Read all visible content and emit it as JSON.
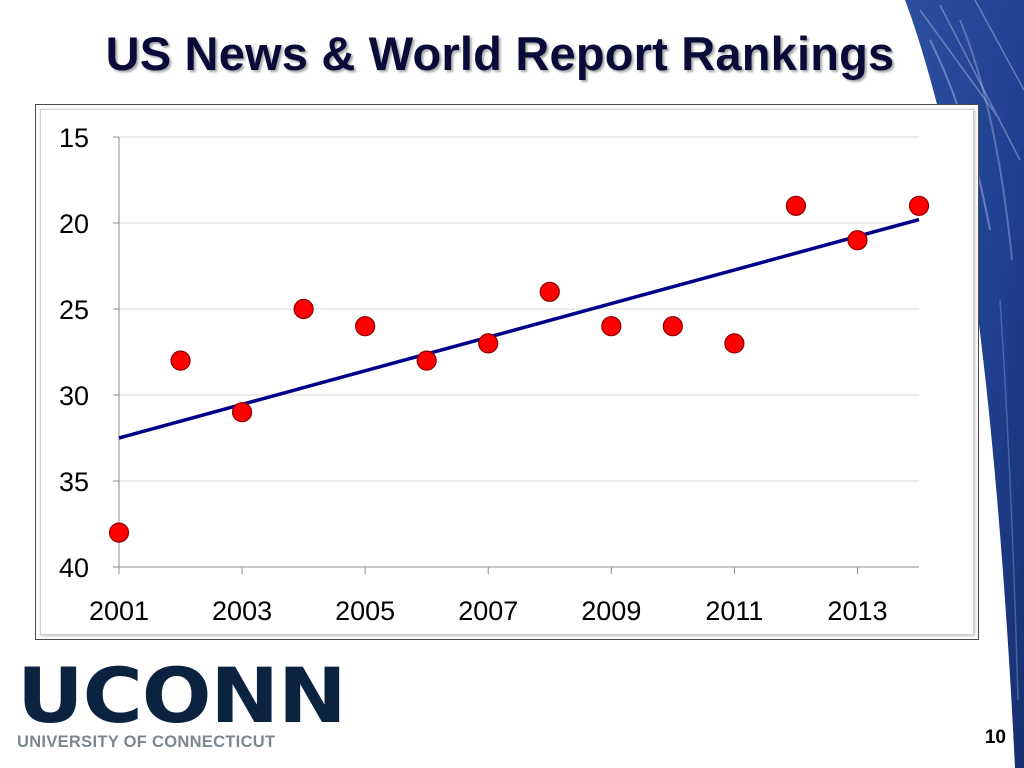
{
  "slide": {
    "title": "US News & World Report Rankings",
    "page_number": "10",
    "logo_text": "UCONN",
    "logo_subtitle": "UNIVERSITY OF CONNECTICUT"
  },
  "colors": {
    "title": "#0b0b3a",
    "marker_fill": "#ff0000",
    "marker_stroke": "#8b0000",
    "trendline": "#00008b",
    "gridline": "#d9d9d9",
    "logo": "#0c2340",
    "logo_subtitle": "#7c878e",
    "corner_art": "#1f3f8f"
  },
  "chart_data": {
    "type": "scatter",
    "title": "",
    "xlabel": "",
    "ylabel": "",
    "x_ticks": [
      2001,
      2003,
      2005,
      2007,
      2009,
      2011,
      2013
    ],
    "y_ticks": [
      15,
      20,
      25,
      30,
      35,
      40
    ],
    "xlim": [
      2001,
      2014
    ],
    "ylim": [
      15,
      40
    ],
    "y_inverted": true,
    "grid": "horizontal",
    "legend": "none",
    "series": [
      {
        "x": [
          2001,
          2002,
          2003,
          2004,
          2005,
          2006,
          2007,
          2008,
          2009,
          2010,
          2011,
          2012,
          2013,
          2014
        ],
        "y": [
          38,
          28,
          31,
          25,
          26,
          28,
          27,
          24,
          26,
          26,
          27,
          19,
          21,
          19
        ]
      }
    ],
    "trendline": {
      "type": "linear",
      "from": [
        2001,
        32.5
      ],
      "to": [
        2014,
        19.8
      ]
    }
  }
}
